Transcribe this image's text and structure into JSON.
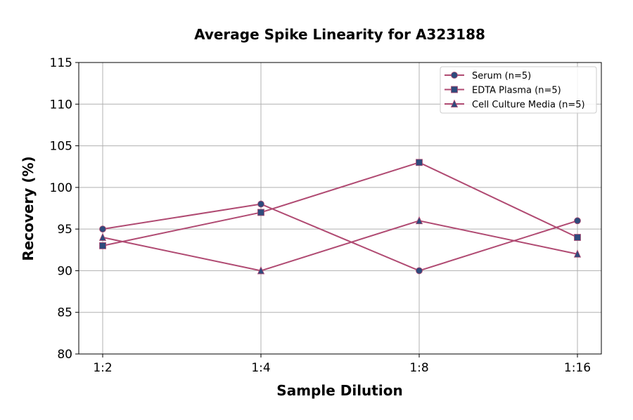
{
  "chart_data": {
    "type": "line",
    "title": "Average Spike Linearity for A323188",
    "xlabel": "Sample Dilution",
    "ylabel": "Recovery (%)",
    "categories": [
      "1:2",
      "1:4",
      "1:8",
      "1:16"
    ],
    "ylim": [
      80,
      115
    ],
    "yticks": [
      80,
      85,
      90,
      95,
      100,
      105,
      110,
      115
    ],
    "grid": true,
    "legend_placement": "top-right",
    "line_color": "#b04a72",
    "marker_color": "#2f4b7c",
    "series": [
      {
        "name": "Serum (n=5)",
        "marker": "circle",
        "values": [
          95,
          98,
          90,
          96
        ]
      },
      {
        "name": "EDTA Plasma (n=5)",
        "marker": "square",
        "values": [
          93,
          97,
          103,
          94
        ]
      },
      {
        "name": "Cell Culture Media (n=5)",
        "marker": "triangle",
        "values": [
          94,
          90,
          96,
          92
        ]
      }
    ]
  }
}
